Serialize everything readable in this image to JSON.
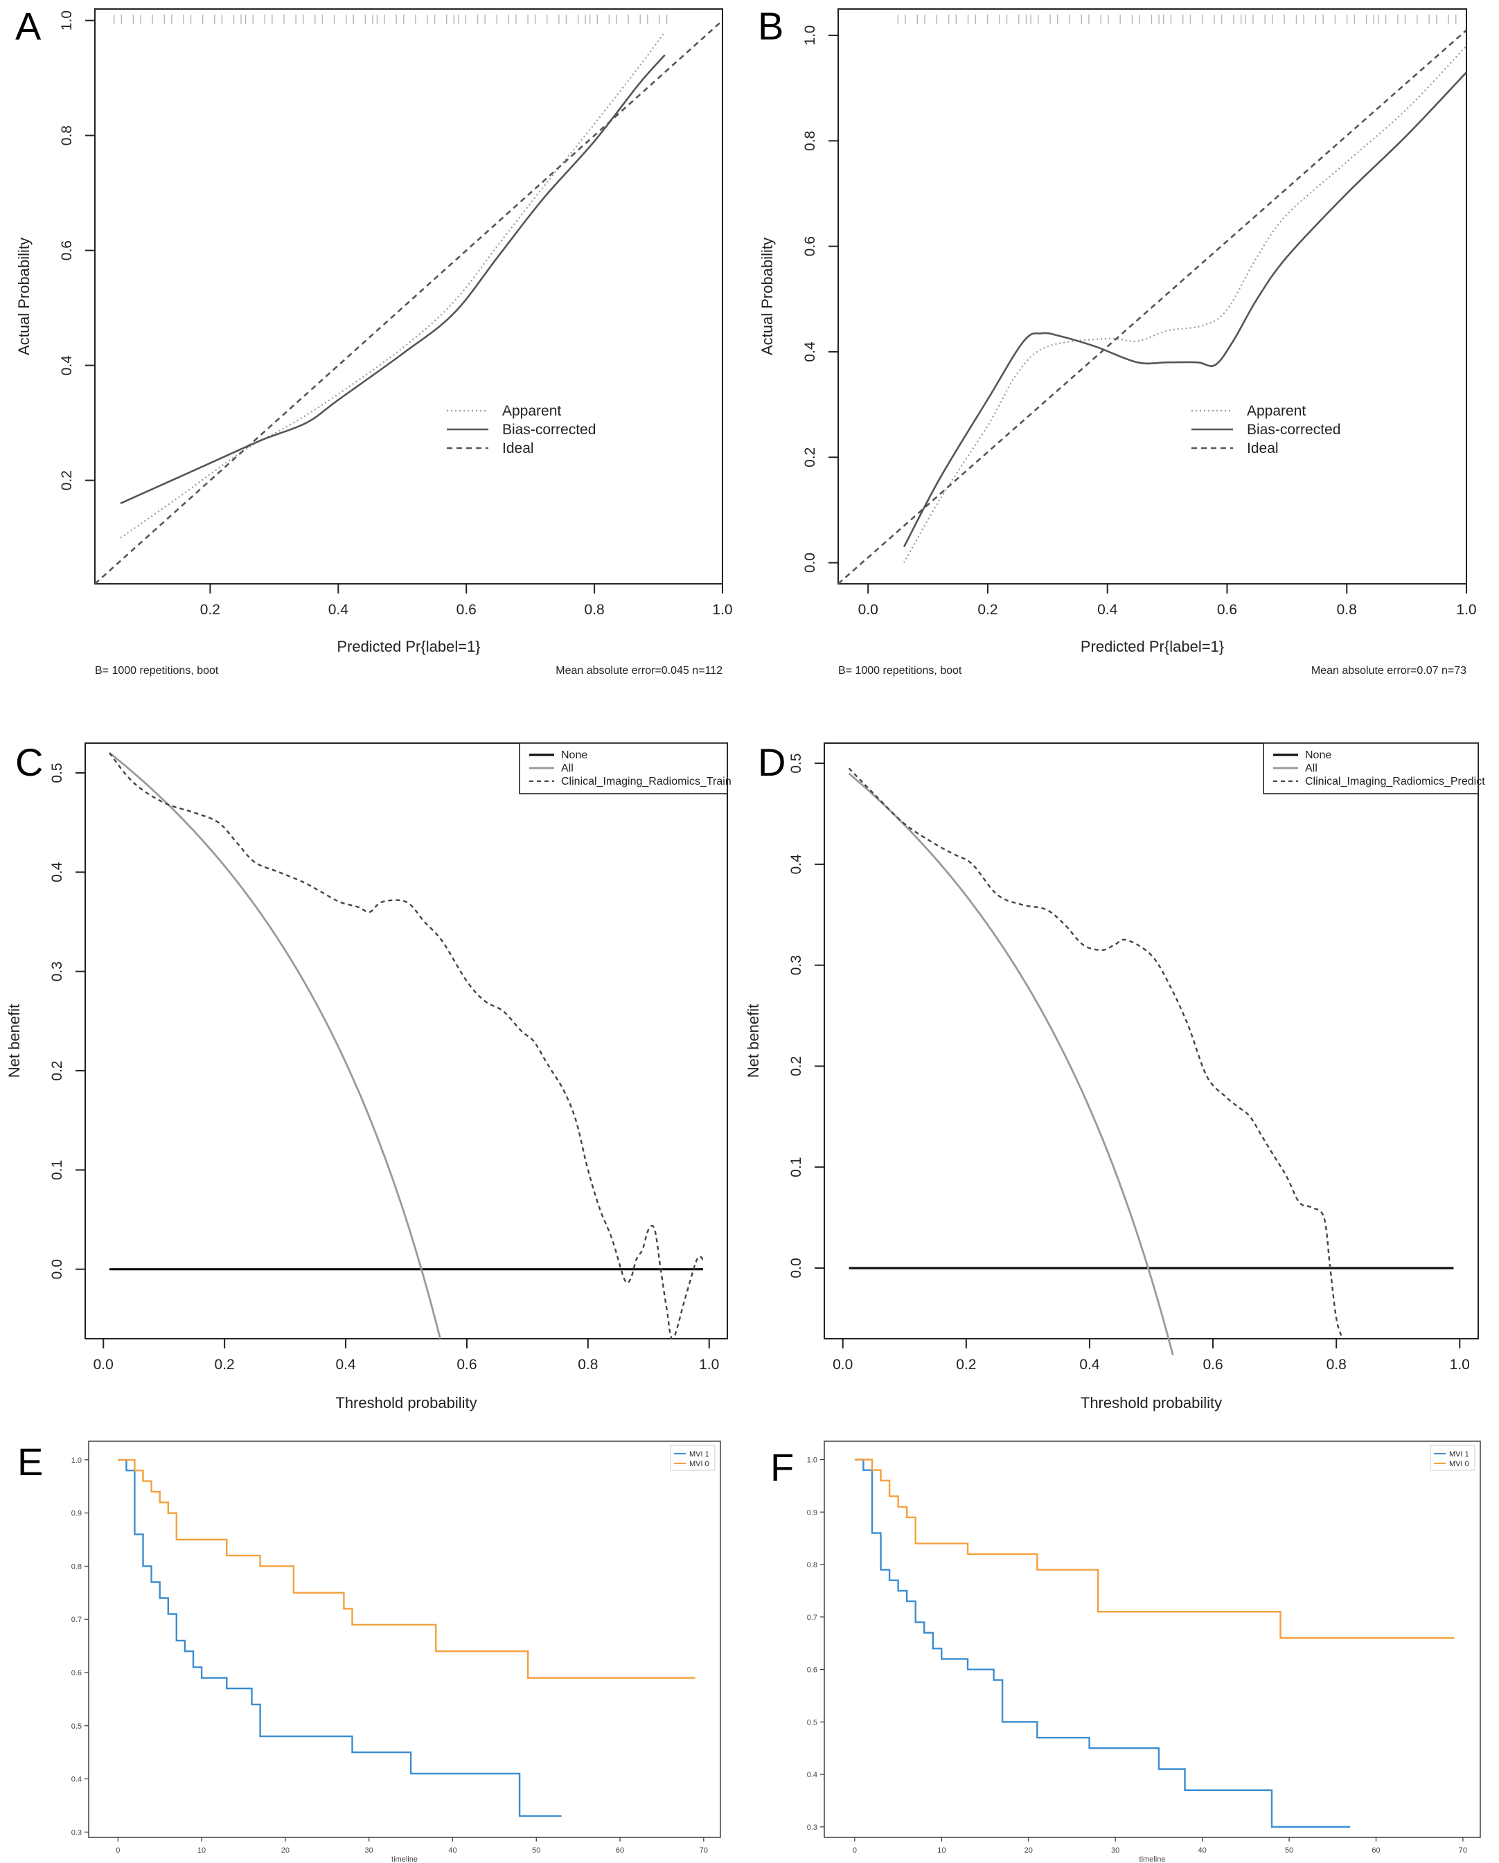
{
  "panels": {
    "A": {
      "label": "A",
      "chart_data": {
        "type": "line",
        "title": "",
        "xlabel": "Predicted Pr{label=1}",
        "ylabel": "Actual Probability",
        "xlim": [
          0.02,
          1.0
        ],
        "ylim": [
          0.02,
          1.02
        ],
        "xticks": [
          0.2,
          0.4,
          0.6,
          0.8,
          1.0
        ],
        "xtick_labels": [
          "0.2",
          "0.4",
          "0.6",
          "0.8",
          "1.0"
        ],
        "yticks": [
          0.2,
          0.4,
          0.6,
          0.8,
          1.0
        ],
        "ytick_labels": [
          "0.2",
          "0.4",
          "0.6",
          "0.8",
          "1.0"
        ],
        "legend": [
          "Apparent",
          "Bias-corrected",
          "Ideal"
        ],
        "note_left": "B= 1000 repetitions, boot",
        "note_right": "Mean absolute error=0.045 n=112",
        "series": [
          {
            "name": "Apparent",
            "x": [
              0.06,
              0.15,
              0.25,
              0.33,
              0.4,
              0.5,
              0.58,
              0.65,
              0.72,
              0.8,
              0.87,
              0.91
            ],
            "y": [
              0.1,
              0.17,
              0.25,
              0.3,
              0.35,
              0.43,
              0.51,
              0.61,
              0.71,
              0.82,
              0.92,
              0.98
            ]
          },
          {
            "name": "Bias-corrected",
            "x": [
              0.06,
              0.1,
              0.2,
              0.28,
              0.35,
              0.4,
              0.5,
              0.58,
              0.65,
              0.72,
              0.8,
              0.87,
              0.91
            ],
            "y": [
              0.16,
              0.18,
              0.23,
              0.27,
              0.3,
              0.34,
              0.42,
              0.49,
              0.59,
              0.69,
              0.79,
              0.89,
              0.94
            ]
          },
          {
            "name": "Ideal",
            "x": [
              0.02,
              1.0
            ],
            "y": [
              0.02,
              1.0
            ]
          }
        ]
      }
    },
    "B": {
      "label": "B",
      "chart_data": {
        "type": "line",
        "title": "",
        "xlabel": "Predicted Pr{label=1}",
        "ylabel": "Actual Probability",
        "xlim": [
          -0.05,
          1.0
        ],
        "ylim": [
          -0.04,
          1.05
        ],
        "xticks": [
          0.0,
          0.2,
          0.4,
          0.6,
          0.8,
          1.0
        ],
        "xtick_labels": [
          "0.0",
          "0.2",
          "0.4",
          "0.6",
          "0.8",
          "1.0"
        ],
        "yticks": [
          0.0,
          0.2,
          0.4,
          0.6,
          0.8,
          1.0
        ],
        "ytick_labels": [
          "0.0",
          "0.2",
          "0.4",
          "0.6",
          "0.8",
          "1.0"
        ],
        "legend": [
          "Apparent",
          "Bias-corrected",
          "Ideal"
        ],
        "note_left": "B= 1000 repetitions, boot",
        "note_right": "Mean absolute error=0.07 n=73",
        "series": [
          {
            "name": "Apparent",
            "x": [
              0.06,
              0.12,
              0.2,
              0.25,
              0.3,
              0.4,
              0.45,
              0.5,
              0.56,
              0.6,
              0.65,
              0.7,
              0.8,
              0.9,
              1.0
            ],
            "y": [
              0.0,
              0.12,
              0.26,
              0.36,
              0.41,
              0.425,
              0.42,
              0.44,
              0.45,
              0.48,
              0.58,
              0.66,
              0.76,
              0.86,
              0.98
            ]
          },
          {
            "name": "Bias-corrected",
            "x": [
              0.06,
              0.12,
              0.2,
              0.26,
              0.29,
              0.32,
              0.38,
              0.45,
              0.5,
              0.55,
              0.58,
              0.61,
              0.65,
              0.7,
              0.8,
              0.9,
              1.0
            ],
            "y": [
              0.03,
              0.16,
              0.31,
              0.42,
              0.435,
              0.43,
              0.41,
              0.38,
              0.38,
              0.38,
              0.375,
              0.42,
              0.5,
              0.58,
              0.7,
              0.81,
              0.93
            ]
          },
          {
            "name": "Ideal",
            "x": [
              -0.05,
              1.0
            ],
            "y": [
              -0.04,
              1.01
            ]
          }
        ]
      }
    },
    "C": {
      "label": "C",
      "chart_data": {
        "type": "line",
        "title": "",
        "xlabel": "Threshold probability",
        "ylabel": "Net benefit",
        "xlim": [
          -0.03,
          1.03
        ],
        "ylim": [
          -0.07,
          0.53
        ],
        "xticks": [
          0.0,
          0.2,
          0.4,
          0.6,
          0.8,
          1.0
        ],
        "xtick_labels": [
          "0.0",
          "0.2",
          "0.4",
          "0.6",
          "0.8",
          "1.0"
        ],
        "yticks": [
          0.0,
          0.1,
          0.2,
          0.3,
          0.4,
          0.5
        ],
        "ytick_labels": [
          "0.0",
          "0.1",
          "0.2",
          "0.3",
          "0.4",
          "0.5"
        ],
        "legend": [
          "None",
          "All",
          "Clinical_Imaging_Radiomics_Train"
        ],
        "prevalence": 0.525,
        "series": [
          {
            "name": "None",
            "x": [
              0.01,
              0.99
            ],
            "y": [
              0.0,
              0.0
            ]
          },
          {
            "name": "All",
            "prevalence": 0.525,
            "x_range": [
              0.01,
              0.556
            ]
          },
          {
            "name": "Clinical_Imaging_Radiomics_Train",
            "x": [
              0.01,
              0.05,
              0.1,
              0.15,
              0.19,
              0.22,
              0.25,
              0.29,
              0.33,
              0.36,
              0.39,
              0.42,
              0.44,
              0.46,
              0.5,
              0.53,
              0.56,
              0.6,
              0.63,
              0.66,
              0.69,
              0.71,
              0.73,
              0.74,
              0.76,
              0.78,
              0.8,
              0.82,
              0.84,
              0.86,
              0.87,
              0.88,
              0.89,
              0.9,
              0.91,
              0.92,
              0.93,
              0.94,
              0.96,
              0.98,
              0.99
            ],
            "y": [
              0.52,
              0.49,
              0.47,
              0.46,
              0.45,
              0.43,
              0.41,
              0.4,
              0.39,
              0.38,
              0.37,
              0.365,
              0.36,
              0.37,
              0.37,
              0.35,
              0.33,
              0.29,
              0.27,
              0.26,
              0.24,
              0.23,
              0.21,
              0.2,
              0.18,
              0.15,
              0.1,
              0.06,
              0.03,
              -0.01,
              -0.01,
              0.01,
              0.02,
              0.04,
              0.04,
              0.0,
              -0.04,
              -0.07,
              -0.03,
              0.01,
              0.01
            ]
          }
        ]
      }
    },
    "D": {
      "label": "D",
      "chart_data": {
        "type": "line",
        "title": "",
        "xlabel": "Threshold probability",
        "ylabel": "Net benefit",
        "xlim": [
          -0.03,
          1.03
        ],
        "ylim": [
          -0.07,
          0.52
        ],
        "xticks": [
          0.0,
          0.2,
          0.4,
          0.6,
          0.8,
          1.0
        ],
        "xtick_labels": [
          "0.0",
          "0.2",
          "0.4",
          "0.6",
          "0.8",
          "1.0"
        ],
        "yticks": [
          0.0,
          0.1,
          0.2,
          0.3,
          0.4,
          0.5
        ],
        "ytick_labels": [
          "0.0",
          "0.1",
          "0.2",
          "0.3",
          "0.4",
          "0.5"
        ],
        "legend": [
          "None",
          "All",
          "Clinical_Imaging_Radiomics_Predict"
        ],
        "prevalence": 0.495,
        "series": [
          {
            "name": "None",
            "x": [
              0.01,
              0.99
            ],
            "y": [
              0.0,
              0.0
            ]
          },
          {
            "name": "All",
            "prevalence": 0.495,
            "x_range": [
              0.01,
              0.535
            ]
          },
          {
            "name": "Clinical_Imaging_Radiomics_Predict",
            "x": [
              0.01,
              0.05,
              0.1,
              0.15,
              0.18,
              0.21,
              0.25,
              0.29,
              0.33,
              0.36,
              0.39,
              0.42,
              0.44,
              0.46,
              0.5,
              0.53,
              0.56,
              0.59,
              0.62,
              0.64,
              0.66,
              0.68,
              0.7,
              0.72,
              0.74,
              0.76,
              0.78,
              0.79,
              0.8,
              0.81
            ],
            "y": [
              0.495,
              0.47,
              0.44,
              0.42,
              0.41,
              0.4,
              0.37,
              0.36,
              0.355,
              0.34,
              0.32,
              0.315,
              0.32,
              0.325,
              0.31,
              0.28,
              0.24,
              0.19,
              0.17,
              0.16,
              0.15,
              0.13,
              0.11,
              0.09,
              0.065,
              0.06,
              0.05,
              0.0,
              -0.05,
              -0.07
            ]
          }
        ]
      }
    },
    "E": {
      "label": "E",
      "chart_data": {
        "type": "line",
        "title": "",
        "xlabel": "timeline",
        "ylabel": "",
        "xlim": [
          -3.5,
          72
        ],
        "ylim": [
          0.29,
          1.035
        ],
        "xticks": [
          0,
          10,
          20,
          30,
          40,
          50,
          60,
          70
        ],
        "xtick_labels": [
          "0",
          "10",
          "20",
          "30",
          "40",
          "50",
          "60",
          "70"
        ],
        "yticks": [
          0.3,
          0.4,
          0.5,
          0.6,
          0.7,
          0.8,
          0.9,
          1.0
        ],
        "ytick_labels": [
          "0.3",
          "0.4",
          "0.5",
          "0.6",
          "0.7",
          "0.8",
          "0.9",
          "1.0"
        ],
        "legend": [
          "MVI 1",
          "MVI 0"
        ],
        "colors": {
          "MVI 1": "#3b8dd0",
          "MVI 0": "#f5a03c"
        },
        "series": [
          {
            "name": "MVI 1",
            "step": true,
            "x": [
              0,
              1,
              2,
              3,
              4,
              5,
              6,
              7,
              8,
              9,
              10,
              12,
              13,
              16,
              17,
              28,
              35,
              48,
              53
            ],
            "y": [
              1.0,
              0.98,
              0.86,
              0.8,
              0.77,
              0.74,
              0.71,
              0.66,
              0.64,
              0.61,
              0.59,
              0.59,
              0.57,
              0.54,
              0.48,
              0.45,
              0.41,
              0.33,
              0.33
            ]
          },
          {
            "name": "MVI 0",
            "step": true,
            "x": [
              0,
              2,
              3,
              4,
              5,
              6,
              7,
              13,
              17,
              21,
              27,
              28,
              38,
              49,
              69
            ],
            "y": [
              1.0,
              0.98,
              0.96,
              0.94,
              0.92,
              0.9,
              0.85,
              0.82,
              0.8,
              0.75,
              0.72,
              0.69,
              0.64,
              0.59,
              0.59
            ]
          }
        ]
      }
    },
    "F": {
      "label": "F",
      "chart_data": {
        "type": "line",
        "title": "",
        "xlabel": "timeline",
        "ylabel": "",
        "xlim": [
          -3.5,
          72
        ],
        "ylim": [
          0.28,
          1.035
        ],
        "xticks": [
          0,
          10,
          20,
          30,
          40,
          50,
          60,
          70
        ],
        "xtick_labels": [
          "0",
          "10",
          "20",
          "30",
          "40",
          "50",
          "60",
          "70"
        ],
        "yticks": [
          0.3,
          0.4,
          0.5,
          0.6,
          0.7,
          0.8,
          0.9,
          1.0
        ],
        "ytick_labels": [
          "0.3",
          "0.4",
          "0.5",
          "0.6",
          "0.7",
          "0.8",
          "0.9",
          "1.0"
        ],
        "legend": [
          "MVI 1",
          "MVI 0"
        ],
        "colors": {
          "MVI 1": "#3b8dd0",
          "MVI 0": "#f5a03c"
        },
        "series": [
          {
            "name": "MVI 1",
            "step": true,
            "x": [
              0,
              1,
              2,
              3,
              4,
              5,
              6,
              7,
              8,
              9,
              10,
              13,
              16,
              17,
              21,
              27,
              35,
              38,
              48,
              57
            ],
            "y": [
              1.0,
              0.98,
              0.86,
              0.79,
              0.77,
              0.75,
              0.73,
              0.69,
              0.67,
              0.64,
              0.62,
              0.6,
              0.58,
              0.5,
              0.47,
              0.45,
              0.41,
              0.37,
              0.3,
              0.3
            ]
          },
          {
            "name": "MVI 0",
            "step": true,
            "x": [
              0,
              2,
              3,
              4,
              5,
              6,
              7,
              13,
              21,
              28,
              49,
              69
            ],
            "y": [
              1.0,
              0.98,
              0.96,
              0.93,
              0.91,
              0.89,
              0.84,
              0.82,
              0.79,
              0.71,
              0.66,
              0.66
            ]
          }
        ]
      }
    }
  }
}
